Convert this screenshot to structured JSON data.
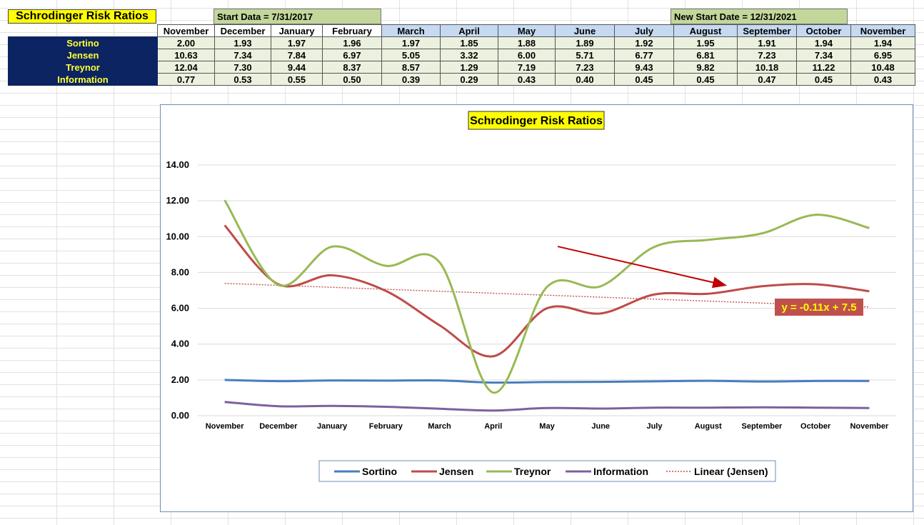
{
  "sheet": {
    "title": "Schrodinger Risk Ratios",
    "start_label": "Start Data = 7/31/2017",
    "new_start_label": "New Start Date = 12/31/2021",
    "columns": [
      "November",
      "December",
      "January",
      "February",
      "March",
      "April",
      "May",
      "June",
      "July",
      "August",
      "September",
      "October",
      "November"
    ],
    "rows": [
      {
        "label": "Sortino",
        "values": [
          "2.00",
          "1.93",
          "1.97",
          "1.96",
          "1.97",
          "1.85",
          "1.88",
          "1.89",
          "1.92",
          "1.95",
          "1.91",
          "1.94",
          "1.94"
        ]
      },
      {
        "label": "Jensen",
        "values": [
          "10.63",
          "7.34",
          "7.84",
          "6.97",
          "5.05",
          "3.32",
          "6.00",
          "5.71",
          "6.77",
          "6.81",
          "7.23",
          "7.34",
          "6.95"
        ]
      },
      {
        "label": "Treynor",
        "values": [
          "12.04",
          "7.30",
          "9.44",
          "8.37",
          "8.57",
          "1.29",
          "7.19",
          "7.23",
          "9.43",
          "9.82",
          "10.18",
          "11.22",
          "10.48"
        ]
      },
      {
        "label": "Information",
        "values": [
          "0.77",
          "0.53",
          "0.55",
          "0.50",
          "0.39",
          "0.29",
          "0.43",
          "0.40",
          "0.45",
          "0.45",
          "0.47",
          "0.45",
          "0.43"
        ]
      }
    ]
  },
  "chart_data": {
    "type": "line",
    "title": "Schrodinger Risk Ratios",
    "categories": [
      "November",
      "December",
      "January",
      "February",
      "March",
      "April",
      "May",
      "June",
      "July",
      "August",
      "September",
      "October",
      "November"
    ],
    "ylim": [
      0,
      14
    ],
    "yticks": [
      "0.00",
      "2.00",
      "4.00",
      "6.00",
      "8.00",
      "10.00",
      "12.00",
      "14.00"
    ],
    "series": [
      {
        "name": "Sortino",
        "color": "#4a7ebb",
        "values": [
          2.0,
          1.93,
          1.97,
          1.96,
          1.97,
          1.85,
          1.88,
          1.89,
          1.92,
          1.95,
          1.91,
          1.94,
          1.94
        ]
      },
      {
        "name": "Jensen",
        "color": "#be4b48",
        "values": [
          10.63,
          7.34,
          7.84,
          6.97,
          5.05,
          3.32,
          6.0,
          5.71,
          6.77,
          6.81,
          7.23,
          7.34,
          6.95
        ]
      },
      {
        "name": "Treynor",
        "color": "#98b954",
        "values": [
          12.04,
          7.3,
          9.44,
          8.37,
          8.57,
          1.29,
          7.19,
          7.23,
          9.43,
          9.82,
          10.18,
          11.22,
          10.48
        ]
      },
      {
        "name": "Information",
        "color": "#7d60a0",
        "values": [
          0.77,
          0.53,
          0.55,
          0.5,
          0.39,
          0.29,
          0.43,
          0.4,
          0.45,
          0.45,
          0.47,
          0.45,
          0.43
        ]
      }
    ],
    "trendline": {
      "name": "Linear (Jensen)",
      "series": "Jensen",
      "color": "#c0504d",
      "equation": "y = -0.11x + 7.5",
      "slope": -0.11,
      "intercept": 7.5
    },
    "annotation_arrow": {
      "color": "#c00000",
      "from": {
        "category_index": 6.2,
        "value": 9.45
      },
      "to": {
        "category_index": 9.3,
        "value": 7.3
      }
    },
    "legend": [
      "Sortino",
      "Jensen",
      "Treynor",
      "Information",
      "Linear (Jensen)"
    ],
    "grid": true,
    "legend_position": "bottom"
  }
}
